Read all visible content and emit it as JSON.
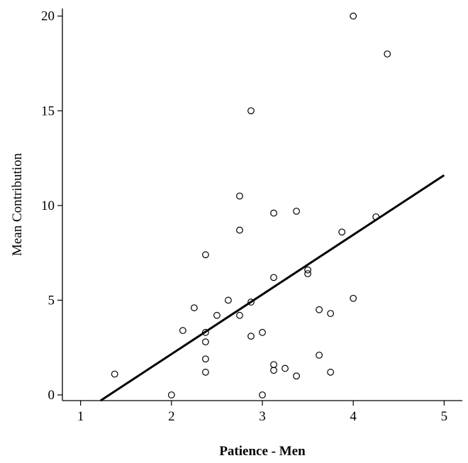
{
  "chart_data": {
    "type": "scatter",
    "xlabel": "Patience - Men",
    "ylabel": "Mean Contribution",
    "xlim": [
      0.8,
      5.2
    ],
    "ylim": [
      -0.3,
      20.4
    ],
    "x_ticks": [
      1,
      2,
      3,
      4,
      5
    ],
    "y_ticks": [
      0,
      5,
      10,
      15,
      20
    ],
    "grid": false,
    "points": [
      {
        "x": 1.375,
        "y": 1.1
      },
      {
        "x": 2.0,
        "y": 0.0
      },
      {
        "x": 2.125,
        "y": 3.4
      },
      {
        "x": 2.25,
        "y": 4.6
      },
      {
        "x": 2.375,
        "y": 7.4
      },
      {
        "x": 2.375,
        "y": 3.3
      },
      {
        "x": 2.375,
        "y": 2.8
      },
      {
        "x": 2.375,
        "y": 1.9
      },
      {
        "x": 2.375,
        "y": 1.2
      },
      {
        "x": 2.5,
        "y": 4.2
      },
      {
        "x": 2.625,
        "y": 5.0
      },
      {
        "x": 2.75,
        "y": 10.5
      },
      {
        "x": 2.75,
        "y": 8.7
      },
      {
        "x": 2.75,
        "y": 4.2
      },
      {
        "x": 2.875,
        "y": 15.0
      },
      {
        "x": 2.875,
        "y": 4.9
      },
      {
        "x": 2.875,
        "y": 3.1
      },
      {
        "x": 3.0,
        "y": 3.3
      },
      {
        "x": 3.0,
        "y": 0.0
      },
      {
        "x": 3.125,
        "y": 9.6
      },
      {
        "x": 3.125,
        "y": 6.2
      },
      {
        "x": 3.125,
        "y": 1.6
      },
      {
        "x": 3.125,
        "y": 1.3
      },
      {
        "x": 3.25,
        "y": 1.4
      },
      {
        "x": 3.375,
        "y": 9.7
      },
      {
        "x": 3.375,
        "y": 1.0
      },
      {
        "x": 3.5,
        "y": 6.6
      },
      {
        "x": 3.5,
        "y": 6.4
      },
      {
        "x": 3.625,
        "y": 4.5
      },
      {
        "x": 3.625,
        "y": 2.1
      },
      {
        "x": 3.75,
        "y": 4.3
      },
      {
        "x": 3.75,
        "y": 1.2
      },
      {
        "x": 3.875,
        "y": 8.6
      },
      {
        "x": 4.0,
        "y": 20.0
      },
      {
        "x": 4.0,
        "y": 5.1
      },
      {
        "x": 4.25,
        "y": 9.4
      },
      {
        "x": 4.375,
        "y": 18.0
      }
    ],
    "fit_line": {
      "x": [
        1.22,
        5.0
      ],
      "y": [
        -0.3,
        11.6
      ]
    }
  }
}
